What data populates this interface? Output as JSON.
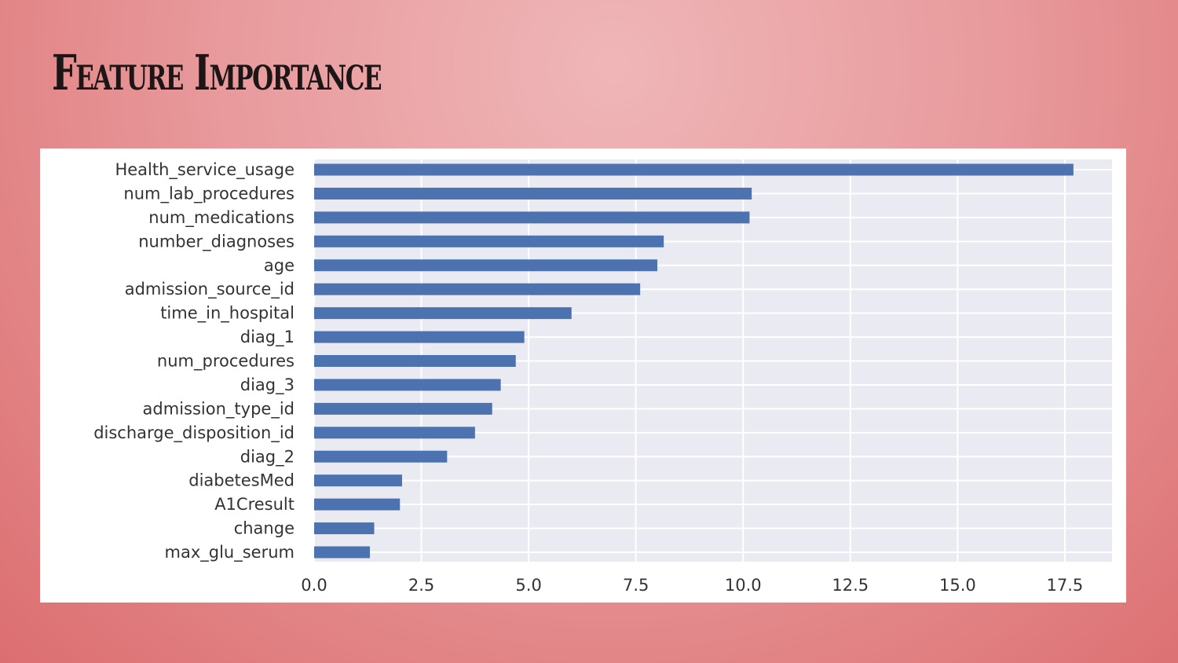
{
  "title": "Feature Importance",
  "chart_data": {
    "type": "bar",
    "orientation": "horizontal",
    "categories": [
      "Health_service_usage",
      "num_lab_procedures",
      "num_medications",
      "number_diagnoses",
      "age",
      "admission_source_id",
      "time_in_hospital",
      "diag_1",
      "num_procedures",
      "diag_3",
      "admission_type_id",
      "discharge_disposition_id",
      "diag_2",
      "diabetesMed",
      "A1Cresult",
      "change",
      "max_glu_serum"
    ],
    "values": [
      17.7,
      10.2,
      10.15,
      8.15,
      8.0,
      7.6,
      6.0,
      4.9,
      4.7,
      4.35,
      4.15,
      3.75,
      3.1,
      2.05,
      2.0,
      1.4,
      1.3
    ],
    "xticks": [
      "0.0",
      "2.5",
      "5.0",
      "7.5",
      "10.0",
      "12.5",
      "15.0",
      "17.5"
    ],
    "xlim": [
      0,
      18.6
    ],
    "grid": true,
    "bar_color": "#4c72b0",
    "plot_background": "#eaeaf2",
    "xlabel": "",
    "ylabel": ""
  }
}
